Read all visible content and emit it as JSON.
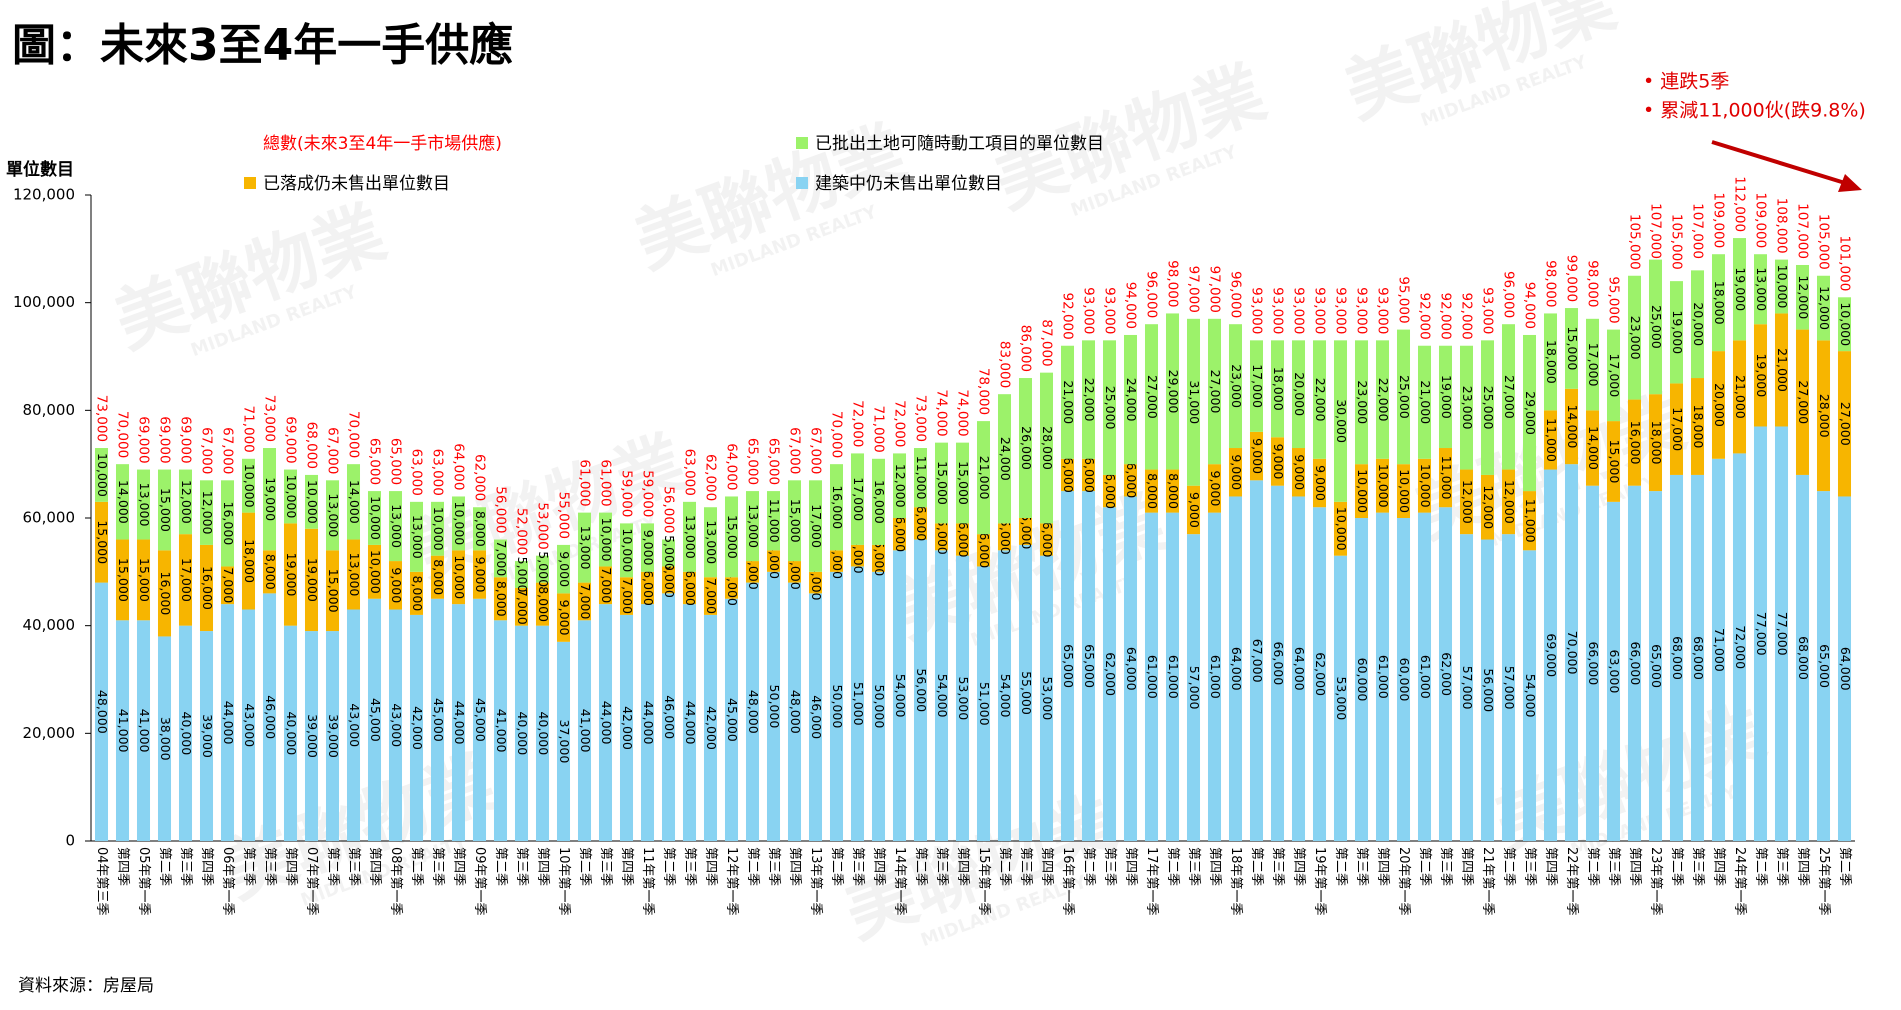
{
  "chart_data": {
    "type": "stacked_bar",
    "title": "圖：未來3至4年一手供應",
    "y_label": "單位數目",
    "source": "資料來源：房屋局",
    "annotations": [
      "• 連跌5季",
      "• 累減11,000伙(跌9.8%)"
    ],
    "watermark": "美聯物業",
    "watermark_sub": "MIDLAND REALTY",
    "categories": [
      "04年第三季",
      "第四季",
      "05年第一季",
      "第二季",
      "第三季",
      "第四季",
      "06年第一季",
      "第二季",
      "第三季",
      "第四季",
      "07年第一季",
      "第二季",
      "第三季",
      "第四季",
      "08年第一季",
      "第二季",
      "第三季",
      "第四季",
      "09年第一季",
      "第二季",
      "第三季",
      "第四季",
      "10年第一季",
      "第二季",
      "第三季",
      "第四季",
      "11年第一季",
      "第二季",
      "第三季",
      "第四季",
      "12年第一季",
      "第二季",
      "第三季",
      "第四季",
      "13年第一季",
      "第二季",
      "第三季",
      "第四季",
      "14年第一季",
      "第二季",
      "第三季",
      "第四季",
      "15年第一季",
      "第二季",
      "第三季",
      "第四季",
      "16年第一季",
      "第二季",
      "第三季",
      "第四季",
      "17年第一季",
      "第二季",
      "第三季",
      "第四季",
      "18年第一季",
      "第二季",
      "第三季",
      "第四季",
      "19年第一季",
      "第二季",
      "第三季",
      "第四季",
      "20年第一季",
      "第二季",
      "第三季",
      "第四季",
      "21年第一季",
      "第二季",
      "第三季",
      "第四季",
      "22年第一季",
      "第二季",
      "第三季",
      "第四季",
      "23年第一季",
      "第二季",
      "第三季",
      "第四季",
      "24年第一季",
      "第二季",
      "第三季",
      "第四季",
      "25年第一季",
      "第二季"
    ],
    "ylim": [
      0,
      120000
    ],
    "yticks": [
      0,
      {
        "value": 20000,
        "label": "20,000"
      },
      {
        "value": 40000,
        "label": "40,000"
      },
      {
        "value": 60000,
        "label": "60,000"
      },
      {
        "value": 80000,
        "label": "80,000"
      },
      {
        "value": 100000,
        "label": "100,000"
      },
      {
        "value": 120000,
        "label": "120,000"
      }
    ],
    "series": [
      {
        "name": "建築中仍未售出單位數目",
        "color": "#89d3f2",
        "values": [
          48000,
          41000,
          41000,
          38000,
          40000,
          39000,
          44000,
          43000,
          46000,
          40000,
          39000,
          39000,
          43000,
          45000,
          43000,
          42000,
          45000,
          44000,
          45000,
          41000,
          40000,
          40000,
          37000,
          41000,
          44000,
          42000,
          44000,
          46000,
          44000,
          42000,
          45000,
          48000,
          50000,
          48000,
          46000,
          50000,
          51000,
          50000,
          54000,
          56000,
          54000,
          53000,
          51000,
          54000,
          55000,
          53000,
          65000,
          65000,
          62000,
          64000,
          61000,
          61000,
          57000,
          61000,
          64000,
          67000,
          66000,
          64000,
          62000,
          53000,
          60000,
          61000,
          60000,
          61000,
          62000,
          57000,
          56000,
          57000,
          54000,
          69000,
          70000,
          66000,
          63000,
          66000,
          65000,
          68000,
          68000,
          71000,
          72000,
          77000,
          77000,
          68000,
          65000,
          64000
        ],
        "value_labels": [
          "48,000",
          "41,000",
          "41,000",
          "38,000",
          "40,000",
          "39,000",
          "44,000",
          "43,000",
          "46,000",
          "40,000",
          "39,000",
          "39,000",
          "43,000",
          "45,000",
          "43,000",
          "42,000",
          "45,000",
          "44,000",
          "45,000",
          "41,000",
          "40,000",
          "40,000",
          "37,000",
          "41,000",
          "44,000",
          "42,000",
          "44,000",
          "46,000",
          "44,000",
          "42,000",
          "45,000",
          "48,000",
          "50,000",
          "48,000",
          "46,000",
          "50,000",
          "51,000",
          "50,000",
          "54,000",
          "56,000",
          "54,000",
          "53,000",
          "51,000",
          "54,000",
          "55,000",
          "53,000",
          "65,000",
          "65,000",
          "62,000",
          "64,000",
          "61,000",
          "61,000",
          "57,000",
          "61,000",
          "64,000",
          "67,000",
          "66,000",
          "64,000",
          "62,000",
          "53,000",
          "60,000",
          "61,000",
          "60,000",
          "61,000",
          "62,000",
          "57,000",
          "56,000",
          "57,000",
          "54,000",
          "69,000",
          "70,000",
          "66,000",
          "63,000",
          "66,000",
          "65,000",
          "68,000",
          "68,000",
          "71,000",
          "72,000",
          "77,000",
          "77,000",
          "68,000",
          "65,000",
          "64,000"
        ]
      },
      {
        "name": "已落成仍未售出單位數目",
        "color": "#f7b500",
        "values": [
          15000,
          15000,
          15000,
          16000,
          17000,
          16000,
          7000,
          18000,
          8000,
          19000,
          19000,
          15000,
          13000,
          10000,
          9000,
          8000,
          8000,
          10000,
          9000,
          8000,
          7000,
          8000,
          9000,
          7000,
          7000,
          7000,
          6000,
          5000,
          6000,
          7000,
          4000,
          4000,
          4000,
          4000,
          4000,
          4000,
          4000,
          5000,
          6000,
          6000,
          5000,
          6000,
          6000,
          5000,
          5000,
          6000,
          6000,
          6000,
          6000,
          6000,
          8000,
          8000,
          9000,
          9000,
          9000,
          9000,
          9000,
          9000,
          9000,
          10000,
          10000,
          10000,
          10000,
          10000,
          11000,
          12000,
          12000,
          12000,
          11000,
          11000,
          14000,
          14000,
          15000,
          16000,
          18000,
          17000,
          18000,
          20000,
          21000,
          19000,
          21000,
          27000,
          28000,
          27000
        ],
        "value_labels": [
          "15,000",
          "15,000",
          "15,000",
          "16,000",
          "17,000",
          "16,000",
          "7,000",
          "18,000",
          "8,000",
          "19,000",
          "19,000",
          "15,000",
          "13,000",
          "10,000",
          "9,000",
          "8,000",
          "8,000",
          "10,000",
          "9,000",
          "8,000",
          "7,000",
          "8,000",
          "9,000",
          "7,000",
          "7,000",
          "7,000",
          "6,000",
          "5,000",
          "6,000",
          "7,000",
          "4,000",
          "4,000",
          "4,000",
          "4,000",
          "4,000",
          "4,000",
          "4,000",
          "5,000",
          "6,000",
          "6,000",
          "5,000",
          "6,000",
          "6,000",
          "5,000",
          "5,000",
          "6,000",
          "6,000",
          "6,000",
          "6,000",
          "6,000",
          "8,000",
          "8,000",
          "9,000",
          "9,000",
          "9,000",
          "9,000",
          "9,000",
          "9,000",
          "9,000",
          "10,000",
          "10,000",
          "10,000",
          "10,000",
          "10,000",
          "11,000",
          "12,000",
          "12,000",
          "12,000",
          "11,000",
          "11,000",
          "14,000",
          "14,000",
          "15,000",
          "16,000",
          "18,000",
          "17,000",
          "18,000",
          "20,000",
          "21,000",
          "19,000",
          "21,000",
          "27,000",
          "28,000",
          "27,000"
        ]
      },
      {
        "name": "已批出土地可隨時動工項目的單位數目",
        "color": "#9cf26a",
        "values": [
          10000,
          14000,
          13000,
          15000,
          12000,
          12000,
          16000,
          10000,
          19000,
          10000,
          10000,
          13000,
          14000,
          10000,
          13000,
          13000,
          10000,
          10000,
          8000,
          7000,
          5000,
          5000,
          9000,
          13000,
          10000,
          10000,
          9000,
          5000,
          13000,
          13000,
          15000,
          13000,
          11000,
          15000,
          17000,
          16000,
          17000,
          16000,
          12000,
          11000,
          15000,
          15000,
          21000,
          24000,
          26000,
          28000,
          21000,
          22000,
          25000,
          24000,
          27000,
          29000,
          31000,
          27000,
          23000,
          17000,
          18000,
          20000,
          22000,
          30000,
          23000,
          22000,
          25000,
          21000,
          19000,
          23000,
          25000,
          27000,
          29000,
          18000,
          15000,
          17000,
          17000,
          23000,
          25000,
          19000,
          20000,
          18000,
          19000,
          13000,
          10000,
          12000,
          12000,
          10000
        ],
        "value_labels": [
          "10,000",
          "14,000",
          "13,000",
          "15,000",
          "12,000",
          "12,000",
          "16,000",
          "10,000",
          "19,000",
          "10,000",
          "10,000",
          "13,000",
          "14,000",
          "10,000",
          "13,000",
          "13,000",
          "10,000",
          "10,000",
          "8,000",
          "7,000",
          "5,000",
          "5,000",
          "9,000",
          "13,000",
          "10,000",
          "10,000",
          "9,000",
          "5,000",
          "13,000",
          "13,000",
          "15,000",
          "13,000",
          "11,000",
          "15,000",
          "17,000",
          "16,000",
          "17,000",
          "16,000",
          "12,000",
          "11,000",
          "15,000",
          "15,000",
          "21,000",
          "24,000",
          "26,000",
          "28,000",
          "21,000",
          "22,000",
          "25,000",
          "24,000",
          "27,000",
          "29,000",
          "31,000",
          "27,000",
          "23,000",
          "17,000",
          "18,000",
          "20,000",
          "22,000",
          "30,000",
          "23,000",
          "22,000",
          "25,000",
          "21,000",
          "19,000",
          "23,000",
          "25,000",
          "27,000",
          "29,000",
          "18,000",
          "15,000",
          "17,000",
          "17,000",
          "23,000",
          "25,000",
          "19,000",
          "20,000",
          "18,000",
          "19,000",
          "13,000",
          "10,000",
          "12,000",
          "12,000",
          "10,000"
        ]
      }
    ],
    "totals": {
      "name": "總數(未來3至4年一手市場供應)",
      "color": "#ff0000",
      "values": [
        73000,
        70000,
        69000,
        69000,
        69000,
        67000,
        67000,
        71000,
        73000,
        69000,
        68000,
        67000,
        70000,
        65000,
        65000,
        63000,
        63000,
        64000,
        62000,
        56000,
        52000,
        53000,
        55000,
        61000,
        61000,
        59000,
        59000,
        56000,
        63000,
        62000,
        64000,
        65000,
        65000,
        67000,
        67000,
        70000,
        72000,
        71000,
        72000,
        73000,
        74000,
        74000,
        78000,
        83000,
        86000,
        87000,
        92000,
        93000,
        93000,
        94000,
        96000,
        98000,
        97000,
        97000,
        96000,
        93000,
        93000,
        93000,
        93000,
        93000,
        93000,
        93000,
        95000,
        92000,
        92000,
        92000,
        93000,
        96000,
        94000,
        98000,
        99000,
        98000,
        95000,
        105000,
        107000,
        105000,
        107000,
        109000,
        112000,
        109000,
        108000,
        107000,
        105000,
        101000
      ],
      "value_labels": [
        "73,000",
        "70,000",
        "69,000",
        "69,000",
        "69,000",
        "67,000",
        "67,000",
        "71,000",
        "73,000",
        "69,000",
        "68,000",
        "67,000",
        "70,000",
        "65,000",
        "65,000",
        "63,000",
        "63,000",
        "64,000",
        "62,000",
        "56,000",
        "52,000",
        "53,000",
        "55,000",
        "61,000",
        "61,000",
        "59,000",
        "59,000",
        "56,000",
        "63,000",
        "62,000",
        "64,000",
        "65,000",
        "65,000",
        "67,000",
        "67,000",
        "70,000",
        "72,000",
        "71,000",
        "72,000",
        "73,000",
        "74,000",
        "74,000",
        "78,000",
        "83,000",
        "86,000",
        "87,000",
        "92,000",
        "93,000",
        "93,000",
        "94,000",
        "96,000",
        "98,000",
        "97,000",
        "97,000",
        "96,000",
        "93,000",
        "93,000",
        "93,000",
        "93,000",
        "93,000",
        "93,000",
        "93,000",
        "95,000",
        "92,000",
        "92,000",
        "92,000",
        "93,000",
        "96,000",
        "94,000",
        "98,000",
        "99,000",
        "98,000",
        "95,000",
        "105,000",
        "107,000",
        "105,000",
        "107,000",
        "109,000",
        "112,000",
        "109,000",
        "108,000",
        "107,000",
        "105,000",
        "101,000"
      ]
    }
  }
}
